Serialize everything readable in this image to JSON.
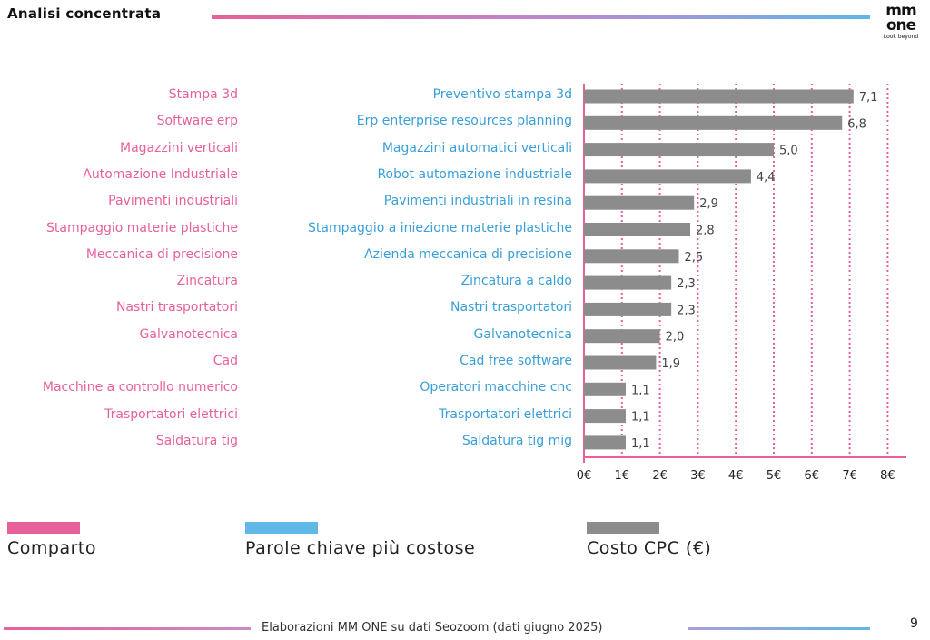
{
  "header": {
    "title": "Analisi concentrata",
    "logo_line1": "mm",
    "logo_line2": "one",
    "logo_tagline": "Look beyond"
  },
  "colors": {
    "pink": "#e8609a",
    "blue": "#3a9fd8",
    "bar": "#8c8c8c",
    "grid": "#e8609a"
  },
  "legend": {
    "items": [
      {
        "label": "Comparto",
        "color": "#e8609a"
      },
      {
        "label": "Parole chiave più costose",
        "color": "#5fb8e6"
      },
      {
        "label": "Costo CPC (€)",
        "color": "#8c8c8c"
      }
    ]
  },
  "chart_data": {
    "type": "bar",
    "orientation": "horizontal",
    "sectors": [
      "Stampa 3d",
      "Software erp",
      "Magazzini verticali",
      "Automazione Industriale",
      "Pavimenti industriali",
      "Stampaggio materie plastiche",
      "Meccanica di precisione",
      "Zincatura",
      "Nastri trasportatori",
      "Galvanotecnica",
      "Cad",
      "Macchine a controllo numerico",
      "Trasportatori elettrici",
      "Saldatura tig"
    ],
    "categories": [
      "Preventivo stampa 3d",
      "Erp enterprise resources planning",
      "Magazzini automatici verticali",
      "Robot automazione industriale",
      "Pavimenti industriali in resina",
      "Stampaggio a iniezione materie plastiche",
      "Azienda meccanica di precisione",
      "Zincatura a caldo",
      "Nastri trasportatori",
      "Galvanotecnica",
      "Cad free software",
      "Operatori macchine cnc",
      "Trasportatori elettrici",
      "Saldatura tig mig"
    ],
    "values": [
      7.1,
      6.8,
      5.0,
      4.4,
      2.9,
      2.8,
      2.5,
      2.3,
      2.3,
      2.0,
      1.9,
      1.1,
      1.1,
      1.1
    ],
    "value_labels": [
      "7,1",
      "6,8",
      "5,0",
      "4,4",
      "2,9",
      "2,8",
      "2,5",
      "2,3",
      "2,3",
      "2,0",
      "1,9",
      "1,1",
      "1,1",
      "1,1"
    ],
    "xlim": [
      0,
      8
    ],
    "xticks": [
      "0€",
      "1€",
      "2€",
      "3€",
      "4€",
      "5€",
      "6€",
      "7€",
      "8€"
    ],
    "grid": true
  },
  "footer": {
    "source": "Elaborazioni MM ONE su dati Seozoom (dati giugno 2025)",
    "page": "9"
  }
}
